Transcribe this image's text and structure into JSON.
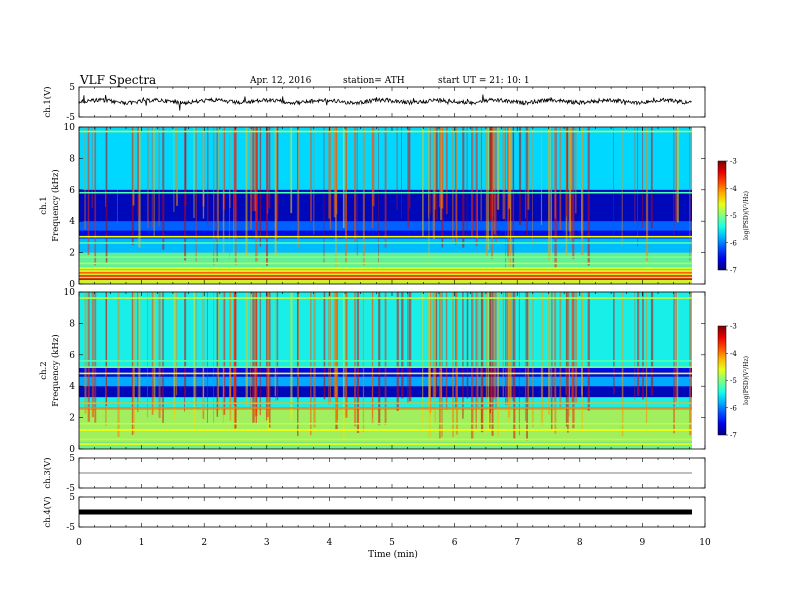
{
  "header": {
    "title": "VLF  Spectra",
    "date": "Apr. 12, 2016",
    "station": "station= ATH",
    "start": "start  UT =    21: 10: 1"
  },
  "chart_data": [
    {
      "type": "line",
      "name": "ch1-waveform",
      "ylabel": "ch.1(V)",
      "ylim": [
        -5,
        5
      ],
      "yticks": [
        "5",
        "-5"
      ],
      "baseline": 0.2
    },
    {
      "type": "heatmap",
      "name": "ch1-spectrogram",
      "ylabel_channel": "ch.1",
      "ylabel": "Frequency  (kHz)",
      "ylim": [
        0,
        10
      ],
      "yticks": [
        "0",
        "2",
        "4",
        "6",
        "8",
        "10"
      ],
      "colorbar": {
        "label": "log(PSD)(V²/Hz)",
        "range": [
          -7,
          -3
        ],
        "ticks": [
          "-3",
          "-4",
          "-5",
          "-6",
          "-7"
        ]
      }
    },
    {
      "type": "heatmap",
      "name": "ch2-spectrogram",
      "ylabel_channel": "ch.2",
      "ylabel": "Frequency  (kHz)",
      "ylim": [
        0,
        10
      ],
      "yticks": [
        "0",
        "2",
        "4",
        "6",
        "8",
        "10"
      ],
      "colorbar": {
        "label": "log(PSD)(V²/Hz)",
        "range": [
          -7,
          -3
        ],
        "ticks": [
          "-3",
          "-4",
          "-5",
          "-6",
          "-7"
        ]
      }
    },
    {
      "type": "line",
      "name": "ch3-waveform",
      "ylabel": "ch.3(V)",
      "ylim": [
        -5,
        5
      ],
      "yticks": [
        "5",
        "-5"
      ],
      "baseline": 0
    },
    {
      "type": "line",
      "name": "ch4-waveform",
      "ylabel": "ch.4(V)",
      "ylim": [
        -5,
        5
      ],
      "yticks": [
        "5",
        "-5"
      ],
      "baseline": 0
    }
  ],
  "xaxis": {
    "label": "Time  (min)",
    "range": [
      0,
      10
    ],
    "ticks": [
      "0",
      "1",
      "2",
      "3",
      "4",
      "5",
      "6",
      "7",
      "8",
      "9",
      "10"
    ]
  }
}
